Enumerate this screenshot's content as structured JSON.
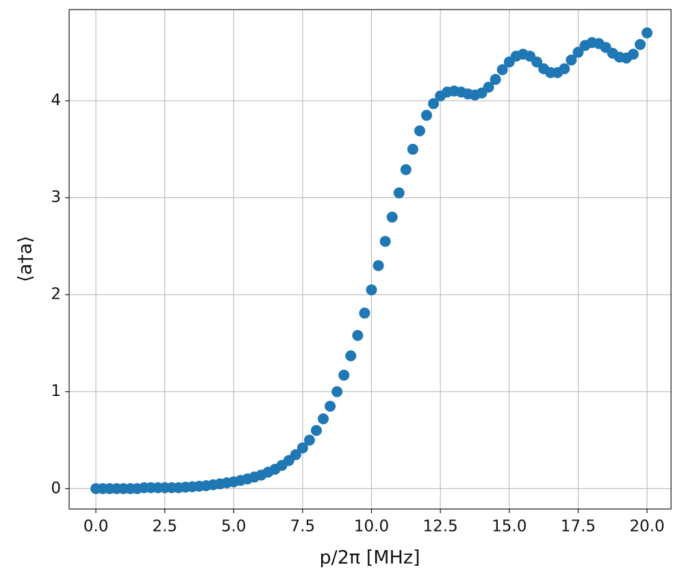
{
  "chart_data": {
    "type": "scatter",
    "xlabel": "p/2π [MHz]",
    "ylabel": "⟨a†a⟩",
    "x": [
      0,
      0.25,
      0.5,
      0.75,
      1,
      1.25,
      1.5,
      1.75,
      2,
      2.25,
      2.5,
      2.75,
      3,
      3.25,
      3.5,
      3.75,
      4,
      4.25,
      4.5,
      4.75,
      5,
      5.25,
      5.5,
      5.75,
      6,
      6.25,
      6.5,
      6.75,
      7,
      7.25,
      7.5,
      7.75,
      8,
      8.25,
      8.5,
      8.75,
      9,
      9.25,
      9.5,
      9.75,
      10,
      10.25,
      10.5,
      10.75,
      11,
      11.25,
      11.5,
      11.75,
      12,
      12.25,
      12.5,
      12.75,
      13,
      13.25,
      13.5,
      13.75,
      14,
      14.25,
      14.5,
      14.75,
      15,
      15.25,
      15.5,
      15.75,
      16,
      16.25,
      16.5,
      16.75,
      17,
      17.25,
      17.5,
      17.75,
      18,
      18.25,
      18.5,
      18.75,
      19,
      19.25,
      19.5,
      19.75,
      20
    ],
    "values": [
      0,
      0,
      0,
      0,
      0,
      0,
      0,
      0.01,
      0.01,
      0.01,
      0.01,
      0.01,
      0.01,
      0.015,
      0.02,
      0.025,
      0.03,
      0.04,
      0.05,
      0.06,
      0.07,
      0.085,
      0.1,
      0.12,
      0.14,
      0.17,
      0.2,
      0.24,
      0.29,
      0.35,
      0.42,
      0.5,
      0.6,
      0.72,
      0.85,
      1.0,
      1.17,
      1.37,
      1.58,
      1.81,
      2.05,
      2.3,
      2.55,
      2.8,
      3.05,
      3.29,
      3.5,
      3.69,
      3.85,
      3.97,
      4.05,
      4.09,
      4.1,
      4.09,
      4.07,
      4.06,
      4.08,
      4.14,
      4.22,
      4.32,
      4.4,
      4.46,
      4.48,
      4.46,
      4.4,
      4.33,
      4.29,
      4.29,
      4.33,
      4.42,
      4.5,
      4.57,
      4.6,
      4.59,
      4.55,
      4.49,
      4.45,
      4.44,
      4.48,
      4.58,
      4.7
    ],
    "color": "#1f77b4",
    "xlim": [
      -0.97,
      20.87
    ],
    "ylim": [
      -0.21,
      4.94
    ],
    "xticks": [
      {
        "value": 0,
        "label": "0.0"
      },
      2.5,
      {
        "value": 5,
        "label": "5.0"
      },
      7.5,
      {
        "value": 10,
        "label": "10.0"
      },
      12.5,
      {
        "value": 15,
        "label": "15.0"
      },
      17.5,
      {
        "value": 20,
        "label": "20.0"
      }
    ],
    "yticks": [
      0,
      1,
      2,
      3,
      4
    ],
    "grid": true
  }
}
